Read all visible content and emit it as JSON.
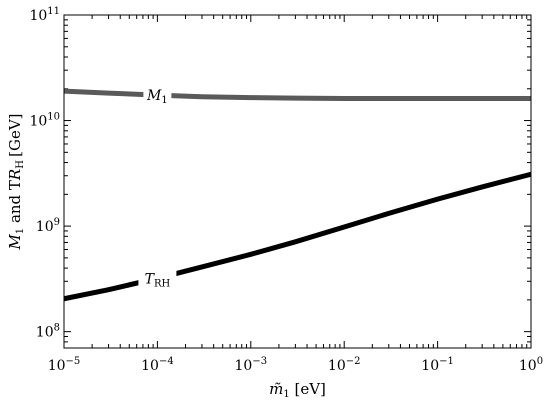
{
  "chart_data": {
    "type": "line",
    "xlabel": "m̃1 [eV]",
    "ylabel": "M1 and TRH [GeV]",
    "x_scale": "log",
    "y_scale": "log",
    "xlim": [
      1e-05,
      1
    ],
    "ylim": [
      70000000.0,
      100000000000.0
    ],
    "x_ticks": [
      {
        "value": 1e-05,
        "base": "10",
        "exp": "−5"
      },
      {
        "value": 0.0001,
        "base": "10",
        "exp": "−4"
      },
      {
        "value": 0.001,
        "base": "10",
        "exp": "−3"
      },
      {
        "value": 0.01,
        "base": "10",
        "exp": "−2"
      },
      {
        "value": 0.1,
        "base": "10",
        "exp": "−1"
      },
      {
        "value": 1,
        "base": "10",
        "exp": "0"
      }
    ],
    "y_ticks": [
      {
        "value": 100000000.0,
        "base": "10",
        "exp": "8"
      },
      {
        "value": 1000000000.0,
        "base": "10",
        "exp": "9"
      },
      {
        "value": 10000000000.0,
        "base": "10",
        "exp": "10"
      },
      {
        "value": 100000000000.0,
        "base": "10",
        "exp": "11"
      }
    ],
    "grid": false,
    "legend": "none",
    "series": [
      {
        "name": "M1",
        "label_main": "M",
        "label_sub": "1",
        "label_at_x": 0.0001,
        "color": "#5a5a5a",
        "x": [
          1e-05,
          3e-05,
          0.0001,
          0.0003,
          0.001,
          0.003,
          0.01,
          0.03,
          0.1,
          0.3,
          1
        ],
        "y": [
          19000000000.0,
          18200000000.0,
          17400000000.0,
          16800000000.0,
          16500000000.0,
          16300000000.0,
          16200000000.0,
          16200000000.0,
          16200000000.0,
          16200000000.0,
          16200000000.0
        ]
      },
      {
        "name": "TRH",
        "label_main": "T",
        "label_sub": "RH",
        "label_at_x": 0.0001,
        "color": "#000000",
        "x": [
          1e-05,
          3e-05,
          0.0001,
          0.0003,
          0.001,
          0.003,
          0.01,
          0.03,
          0.1,
          0.3,
          1
        ],
        "y": [
          205000000.0,
          250000000.0,
          320000000.0,
          410000000.0,
          540000000.0,
          710000000.0,
          980000000.0,
          1320000000.0,
          1800000000.0,
          2350000000.0,
          3100000000.0
        ]
      }
    ]
  }
}
